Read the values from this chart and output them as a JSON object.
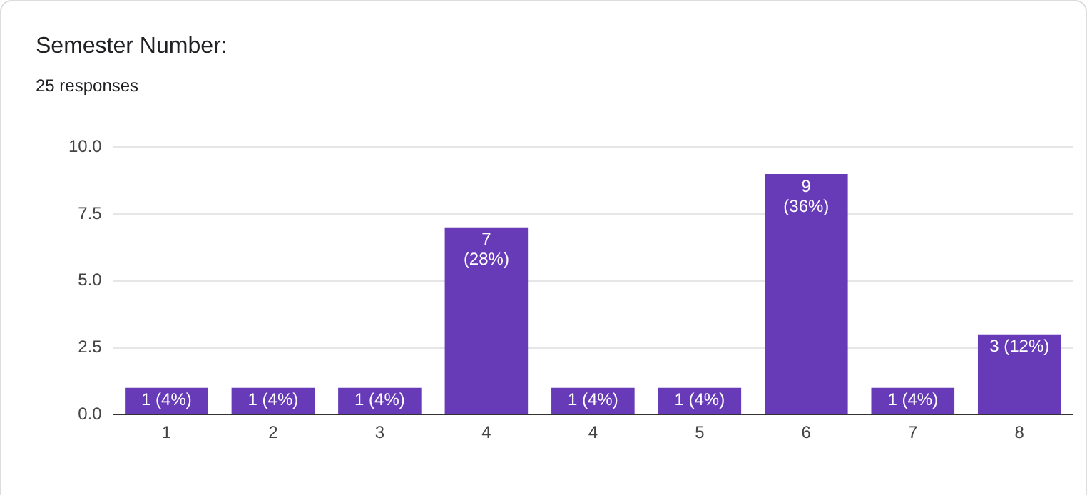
{
  "chart_data": {
    "type": "bar",
    "title": "Semester Number:",
    "subtitle": "25 responses",
    "categories": [
      "1",
      "2",
      "3",
      "4",
      "4",
      "5",
      "6",
      "7",
      "8"
    ],
    "values": [
      1,
      1,
      1,
      7,
      1,
      1,
      9,
      1,
      3
    ],
    "value_labels": [
      "1 (4%)",
      "1 (4%)",
      "1 (4%)",
      "7 (28%)",
      "1 (4%)",
      "1 (4%)",
      "9 (36%)",
      "1 (4%)",
      "3 (12%)"
    ],
    "color": "#673ab7",
    "ylim": [
      0,
      10
    ],
    "yticks": [
      {
        "value": 0,
        "label": "0.0"
      },
      {
        "value": 2.5,
        "label": "2.5"
      },
      {
        "value": 5,
        "label": "5.0"
      },
      {
        "value": 7.5,
        "label": "7.5"
      },
      {
        "value": 10,
        "label": "10.0"
      }
    ],
    "grid": "y",
    "legend": false
  }
}
